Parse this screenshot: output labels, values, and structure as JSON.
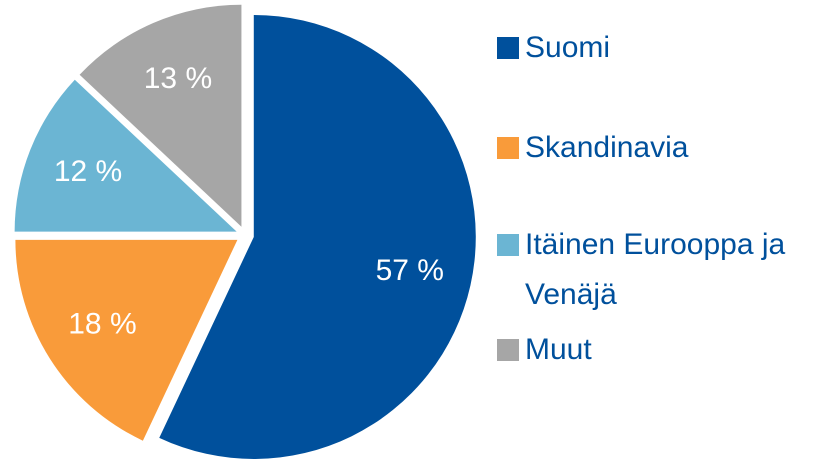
{
  "chart_data": {
    "type": "pie",
    "categories": [
      "Suomi",
      "Skandinavia",
      "Itäinen Eurooppa ja Venäjä",
      "Muut"
    ],
    "values": [
      57,
      18,
      12,
      13
    ],
    "value_labels": [
      "57 %",
      "18 %",
      "12 %",
      "13 %"
    ],
    "colors": [
      "#00509c",
      "#f99b3a",
      "#6bb5d3",
      "#a6a6a6"
    ],
    "legend": "right"
  }
}
